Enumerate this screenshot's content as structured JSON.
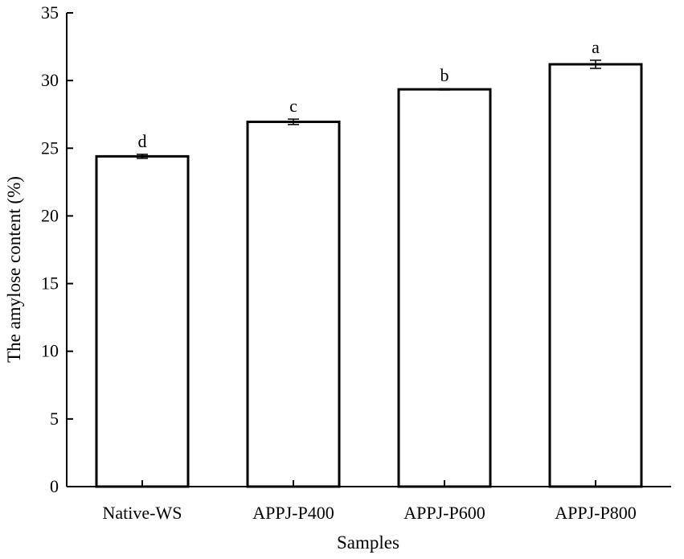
{
  "chart_data": {
    "type": "bar",
    "categories": [
      "Native-WS",
      "APPJ-P400",
      "APPJ-P600",
      "APPJ-P800"
    ],
    "values": [
      24.4,
      26.95,
      29.35,
      31.2
    ],
    "errors": [
      0.15,
      0.2,
      0.05,
      0.3
    ],
    "significance_letters": [
      "d",
      "c",
      "b",
      "a"
    ],
    "xlabel": "Samples",
    "ylabel": "The amylose content (%)",
    "ylim": [
      0,
      35
    ],
    "yticks": [
      "0",
      "5",
      "10",
      "15",
      "20",
      "25",
      "30",
      "35"
    ],
    "grid": false,
    "legend": "none"
  }
}
